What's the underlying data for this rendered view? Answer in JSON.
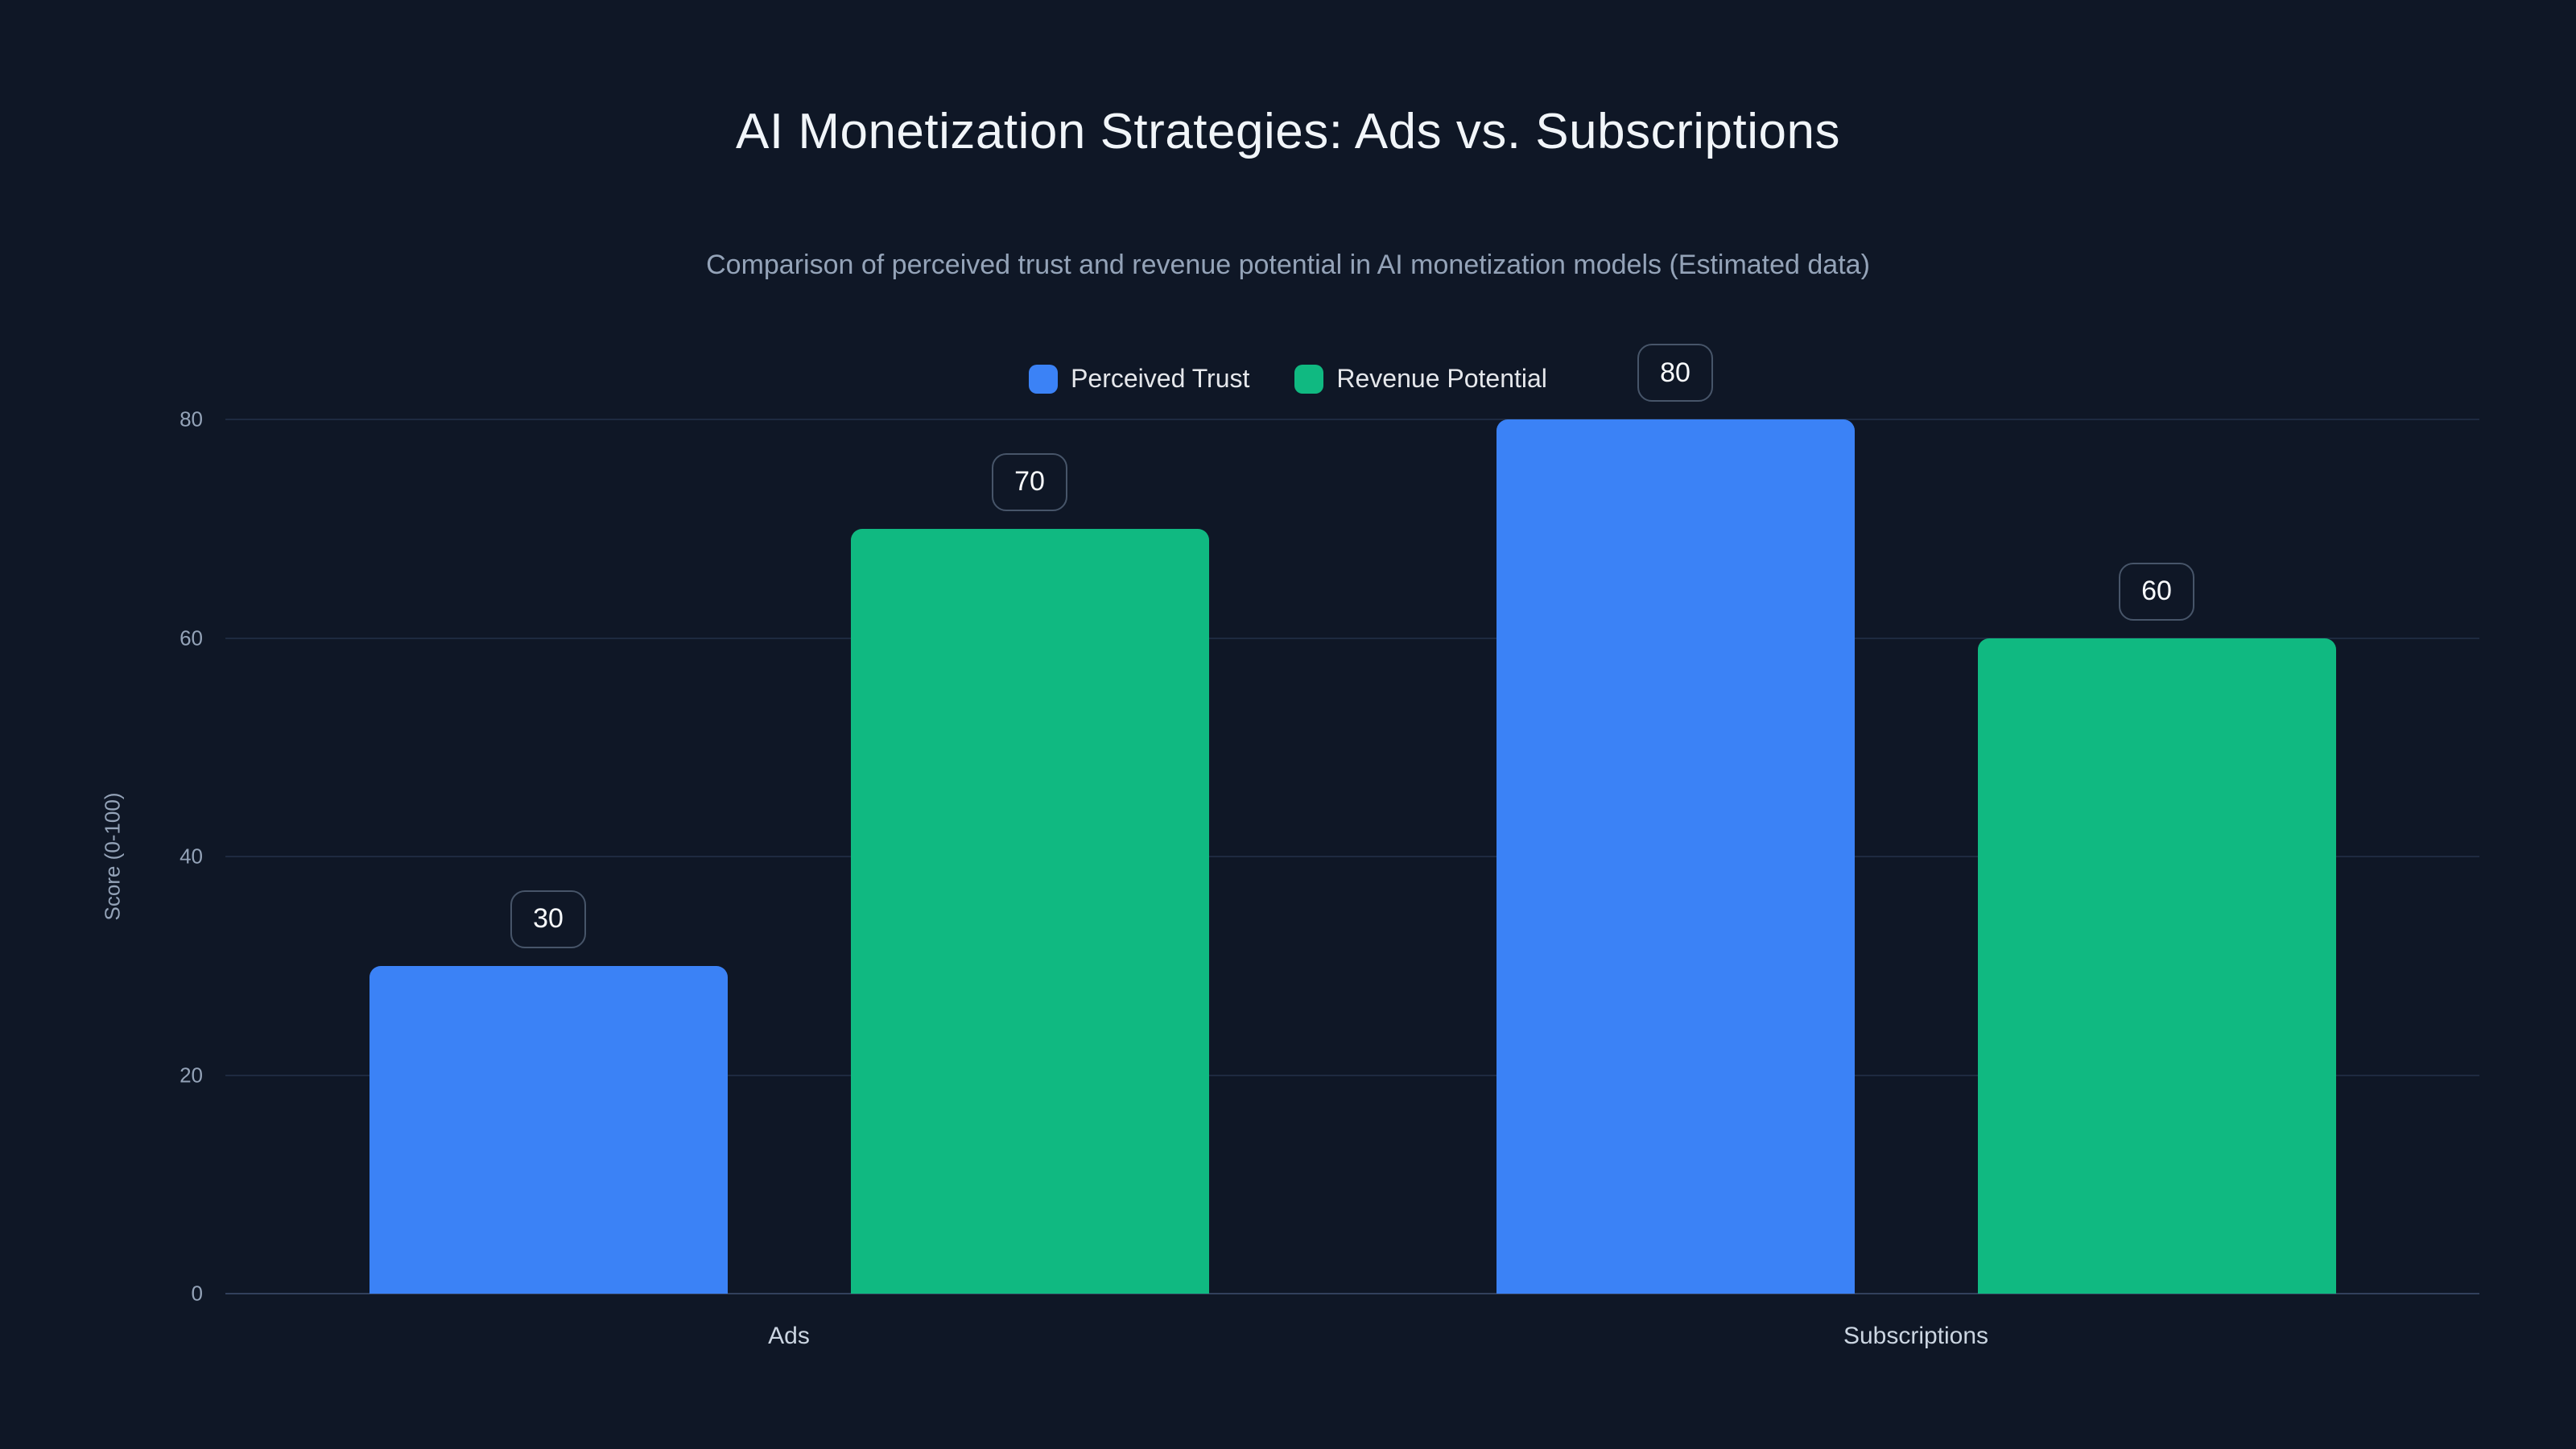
{
  "colors": {
    "background": "#0f1726",
    "grid": "#1e2a40",
    "axis_baseline": "#32405c",
    "title_text": "#f1f5f9",
    "subtitle_text": "#94a3b8",
    "tick_text": "#94a3b8",
    "category_text": "#cbd5e1",
    "legend_text": "#e5e7eb",
    "badge_border": "#475569",
    "badge_text": "#f8fafc"
  },
  "chart_data": {
    "type": "bar",
    "title": "AI Monetization Strategies: Ads vs. Subscriptions",
    "subtitle": "Comparison of perceived trust and revenue potential in AI monetization models (Estimated data)",
    "categories": [
      "Ads",
      "Subscriptions"
    ],
    "series": [
      {
        "name": "Perceived Trust",
        "color": "#3b82f6",
        "values": [
          30,
          80
        ]
      },
      {
        "name": "Revenue Potential",
        "color": "#10b981",
        "values": [
          70,
          60
        ]
      }
    ],
    "value_labels": [
      [
        30,
        80
      ],
      [
        70,
        60
      ]
    ],
    "xlabel": "",
    "ylabel": "Score (0-100)",
    "ylim": [
      0,
      80
    ],
    "yticks": [
      0,
      20,
      40,
      60,
      80
    ],
    "grid": true,
    "legend_position": "top-center"
  }
}
